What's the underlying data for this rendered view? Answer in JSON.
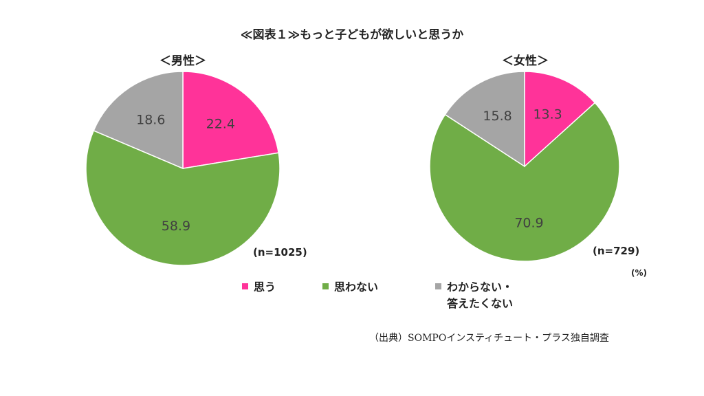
{
  "title": "≪図表１≫もっと子どもが欲しいと思うか",
  "unit": "(%)",
  "source": "（出典）SOMPOインスティチュート・プラス独自調査",
  "legend": [
    {
      "label": "思う",
      "color": "#FF3399"
    },
    {
      "label": "思わない",
      "color": "#70AD47"
    },
    {
      "label": "わからない・\n答えたくない",
      "color": "#A5A5A5"
    }
  ],
  "chart_data": [
    {
      "type": "pie",
      "title": "＜男性＞",
      "n_label": "(n=1025)",
      "categories": [
        "思う",
        "思わない",
        "わからない・答えたくない"
      ],
      "values": [
        22.4,
        58.9,
        18.6
      ],
      "colors": [
        "#FF3399",
        "#70AD47",
        "#A5A5A5"
      ]
    },
    {
      "type": "pie",
      "title": "＜女性＞",
      "n_label": "(n=729)",
      "categories": [
        "思う",
        "思わない",
        "わからない・答えたくない"
      ],
      "values": [
        13.3,
        70.9,
        15.8
      ],
      "colors": [
        "#FF3399",
        "#70AD47",
        "#A5A5A5"
      ]
    }
  ]
}
